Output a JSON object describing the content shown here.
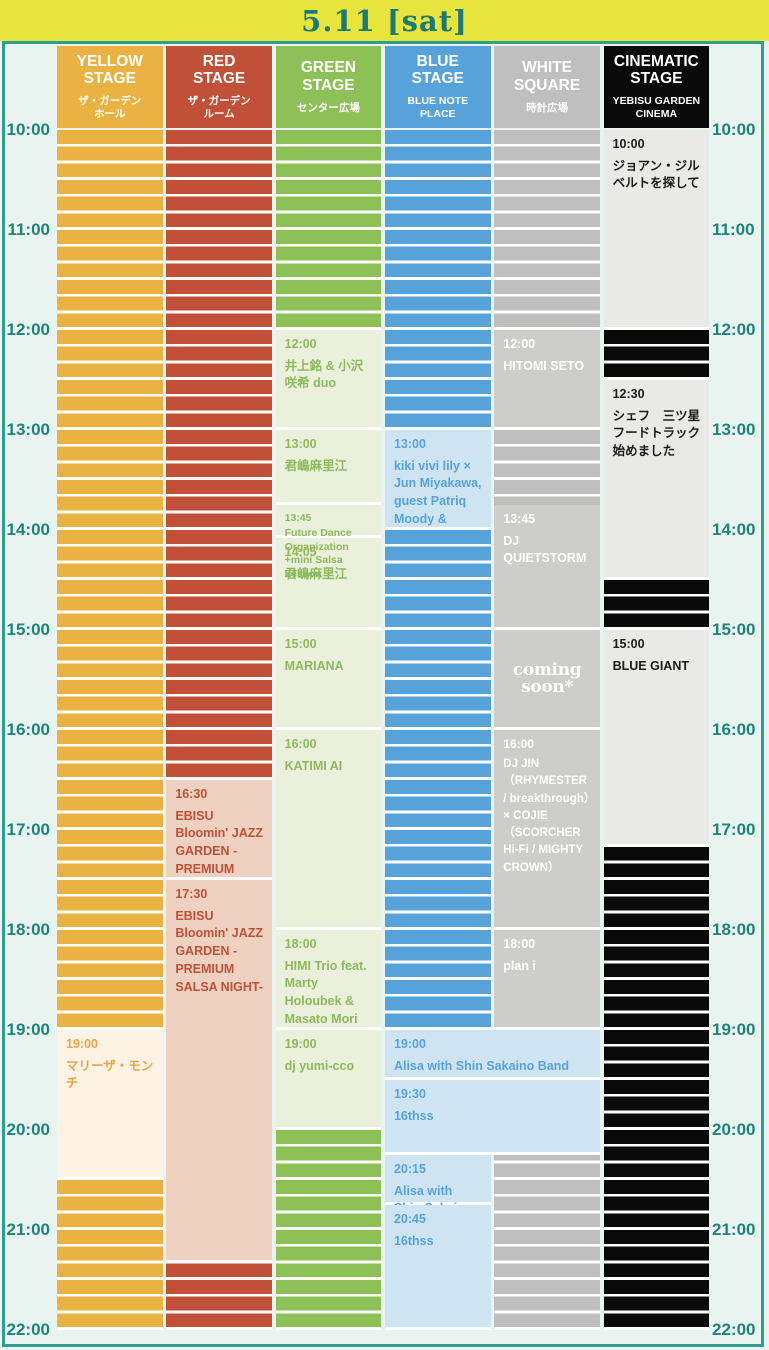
{
  "title": "5.11 [sat]",
  "hours": [
    "10:00",
    "11:00",
    "12:00",
    "13:00",
    "14:00",
    "15:00",
    "16:00",
    "17:00",
    "18:00",
    "19:00",
    "20:00",
    "21:00",
    "22:00"
  ],
  "ui": {
    "band_bg": "#e7e43d",
    "title_color": "#1d7a72",
    "frame_color": "#2f9d92",
    "page_bg": "#e9f4f0",
    "hour_label_color": "#1f837b",
    "stripe_gap_color": "#ffffff"
  },
  "stages": [
    {
      "id": "yellow",
      "name": "YELLOW\nSTAGE",
      "venue": "ザ・ガーデン\nホール",
      "color": "#eab242",
      "light": "#fdf3e5",
      "text": "#e8a64a",
      "events": [
        {
          "time": "19:00",
          "title": "マリーザ・モンチ",
          "start": "19:00",
          "end": "20:30"
        }
      ]
    },
    {
      "id": "red",
      "name": "RED\nSTAGE",
      "venue": "ザ・ガーデン\nルーム",
      "color": "#c05138",
      "light": "#eed1c1",
      "text": "#c05138",
      "events": [
        {
          "time": "16:30",
          "title": "EBISU Bloomin' JAZZ GARDEN -PREMIUM SALSA NIGHT- [Lesson]",
          "start": "16:30",
          "end": "17:30"
        },
        {
          "time": "17:30",
          "title": "EBISU Bloomin' JAZZ GARDEN -PREMIUM SALSA NIGHT-",
          "start": "17:30",
          "end": "21:20"
        }
      ]
    },
    {
      "id": "green",
      "name": "GREEN\nSTAGE",
      "venue": "センター広場",
      "color": "#8dc157",
      "light": "#eaf0dc",
      "text": "#8cba5b",
      "events": [
        {
          "time": "12:00",
          "title": "井上銘 & 小沢咲希 duo",
          "start": "12:00",
          "end": "13:00"
        },
        {
          "time": "13:00",
          "title": "君嶋麻里江",
          "start": "13:00",
          "end": "13:45"
        },
        {
          "time": "13:45",
          "title": "Future Dance Organization +mini Salsa Lesson",
          "start": "13:45",
          "end": "14:05",
          "size": "sm"
        },
        {
          "time": "14:05",
          "title": "君嶋麻里江",
          "start": "14:05",
          "end": "15:00"
        },
        {
          "time": "15:00",
          "title": "MARIANA",
          "start": "15:00",
          "end": "16:00"
        },
        {
          "time": "16:00",
          "title": "KATIMI AI",
          "start": "16:00",
          "end": "18:00"
        },
        {
          "time": "18:00",
          "title": "HIMI Trio feat. Marty Holoubek & Masato Mori",
          "start": "18:00",
          "end": "19:00"
        },
        {
          "time": "19:00",
          "title": "dj yumi-cco",
          "start": "19:00",
          "end": "20:00"
        }
      ]
    },
    {
      "id": "blue",
      "name": "BLUE\nSTAGE",
      "venue": "BLUE NOTE\nPLACE",
      "color": "#57a3d9",
      "light": "#cfe4f2",
      "text": "#57a3d9",
      "events": [
        {
          "time": "13:00",
          "title": "kiki vivi lily × Jun Miyakawa, guest Patriq Moody & Budamunk",
          "start": "13:00",
          "end": "14:00"
        },
        {
          "time": "19:00",
          "title": "Alisa with Shin Sakaino Band",
          "start": "19:00",
          "end": "19:30",
          "wide": true
        },
        {
          "time": "19:30",
          "title": "16thss",
          "start": "19:30",
          "end": "20:15",
          "wide": true
        },
        {
          "time": "20:15",
          "title": "Alisa with Shin Sakaino Band",
          "start": "20:15",
          "end": "20:45"
        },
        {
          "time": "20:45",
          "title": "16thss",
          "start": "20:45",
          "end": "22:00"
        }
      ]
    },
    {
      "id": "white",
      "name": "WHITE\nSQUARE",
      "venue": "時計広場",
      "color": "#bfbfbf",
      "light": "#cdcdcb",
      "text": "#ffffff",
      "events": [
        {
          "time": "12:00",
          "title": "HITOMI SETO",
          "start": "12:00",
          "end": "13:00"
        },
        {
          "time": "13:45",
          "title": "DJ QUIETSTORM",
          "start": "13:45",
          "end": "15:00"
        },
        {
          "start": "15:00",
          "end": "16:00",
          "logo": [
            "coming",
            "soon*"
          ]
        },
        {
          "time": "16:00",
          "title": "DJ JIN （RHYMESTER / breakthrough）× COJIE （SCORCHER Hi-Fi / MIGHTY CROWN）",
          "start": "16:00",
          "end": "18:00",
          "size": "md"
        },
        {
          "time": "18:00",
          "title": "plan i",
          "start": "18:00",
          "end": "19:00"
        }
      ]
    },
    {
      "id": "cinematic",
      "name": "CINEMATIC\nSTAGE",
      "venue": "YEBISU GARDEN\nCINEMA",
      "color": "#0a0a0a",
      "light": "#e9e9e7",
      "text": "#1b1b1b",
      "events": [
        {
          "time": "10:00",
          "title": "ジョアン・ジルベルトを探して",
          "start": "10:00",
          "end": "12:00"
        },
        {
          "time": "12:30",
          "title": "シェフ　三ツ星 フードトラック 始めました",
          "start": "12:30",
          "end": "14:30"
        },
        {
          "time": "15:00",
          "title": "BLUE GIANT",
          "start": "15:00",
          "end": "17:10"
        }
      ]
    }
  ]
}
